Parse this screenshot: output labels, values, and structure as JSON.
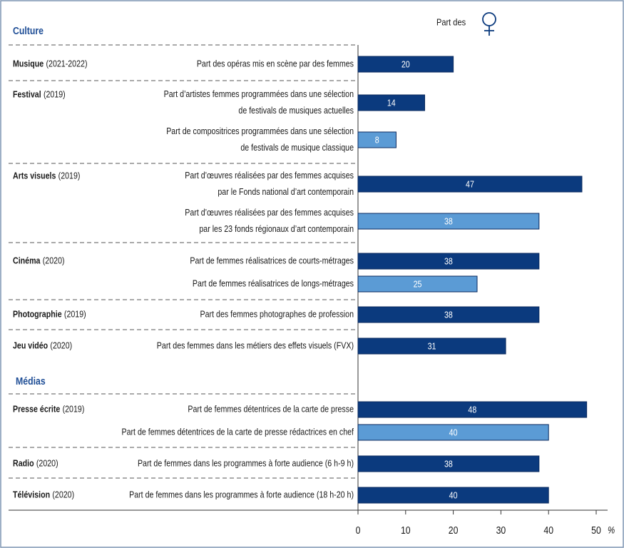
{
  "chart_data": {
    "type": "bar",
    "orientation": "horizontal",
    "legend_label": "Part des",
    "x_unit": "%",
    "xlim": [
      0,
      50
    ],
    "xticks": [
      0,
      10,
      20,
      30,
      40,
      50
    ],
    "sections": [
      {
        "title": "Culture",
        "groups": [
          {
            "name": "Musique",
            "period": "(2021-2022)",
            "categories": [
              [
                "Part des opéras mis en scène par des femmes"
              ]
            ],
            "values": [
              20
            ],
            "colors": [
              "#0b3a7e"
            ]
          },
          {
            "name": "Festival",
            "period": "(2019)",
            "categories": [
              [
                "Part d’artistes femmes programmées dans une sélection",
                "de festivals de musiques actuelles"
              ],
              [
                "Part de compositrices programmées dans une sélection",
                "de festivals de musique classique"
              ]
            ],
            "values": [
              14,
              8
            ],
            "colors": [
              "#0b3a7e",
              "#5b9bd5"
            ]
          },
          {
            "name": "Arts visuels",
            "period": "(2019)",
            "categories": [
              [
                "Part d’œuvres réalisées par des femmes acquises",
                "par le Fonds national d’art contemporain"
              ],
              [
                "Part d’œuvres réalisées par des femmes acquises",
                "par les 23 fonds régionaux d’art contemporain"
              ]
            ],
            "values": [
              47,
              38
            ],
            "colors": [
              "#0b3a7e",
              "#5b9bd5"
            ]
          },
          {
            "name": "Cinéma",
            "period": "(2020)",
            "categories": [
              [
                "Part de femmes réalisatrices de courts-métrages"
              ],
              [
                "Part de femmes réalisatrices de longs-métrages"
              ]
            ],
            "values": [
              38,
              25
            ],
            "colors": [
              "#0b3a7e",
              "#5b9bd5"
            ]
          },
          {
            "name": "Photographie",
            "period": "(2019)",
            "categories": [
              [
                "Part des femmes photographes de profession"
              ]
            ],
            "values": [
              38
            ],
            "colors": [
              "#0b3a7e"
            ]
          },
          {
            "name": "Jeu vidéo",
            "period": "(2020)",
            "categories": [
              [
                "Part des femmes dans les métiers des effets visuels (FVX)"
              ]
            ],
            "values": [
              31
            ],
            "colors": [
              "#0b3a7e"
            ]
          }
        ]
      },
      {
        "title": "Médias",
        "groups": [
          {
            "name": "Presse écrite",
            "period": "(2019)",
            "categories": [
              [
                "Part de femmes détentrices de la carte de presse"
              ],
              [
                "Part de femmes détentrices de la carte de presse rédactrices en chef"
              ]
            ],
            "values": [
              48,
              40
            ],
            "colors": [
              "#0b3a7e",
              "#5b9bd5"
            ]
          },
          {
            "name": "Radio",
            "period": "(2020)",
            "categories": [
              [
                "Part de femmes dans les programmes à forte audience (6 h-9 h)"
              ]
            ],
            "values": [
              38
            ],
            "colors": [
              "#0b3a7e"
            ]
          },
          {
            "name": "Télévision",
            "period": "(2020)",
            "categories": [
              [
                "Part de femmes dans les programmes à forte audience (18 h-20 h)"
              ]
            ],
            "values": [
              40
            ],
            "colors": [
              "#0b3a7e"
            ]
          }
        ]
      }
    ]
  }
}
